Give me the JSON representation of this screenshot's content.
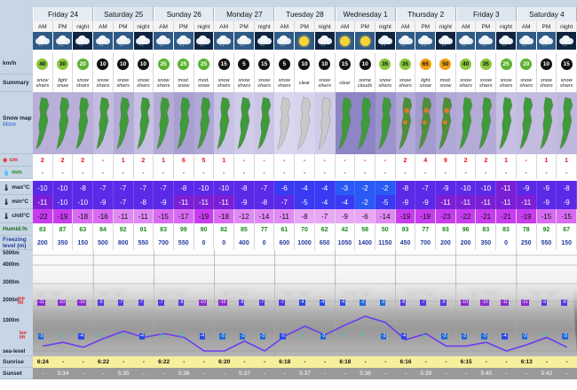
{
  "days": [
    {
      "name": "Friday 24",
      "periods": [
        "AM",
        "PM",
        "night"
      ]
    },
    {
      "name": "Saturday 25",
      "periods": [
        "AM",
        "PM",
        "night"
      ]
    },
    {
      "name": "Sunday 26",
      "periods": [
        "AM",
        "PM",
        "night"
      ]
    },
    {
      "name": "Monday 27",
      "periods": [
        "AM",
        "PM",
        "night"
      ]
    },
    {
      "name": "Tuesday 28",
      "periods": [
        "AM",
        "PM",
        "night"
      ]
    },
    {
      "name": "Wednesday 1",
      "periods": [
        "AM",
        "PM",
        "night"
      ]
    },
    {
      "name": "Thursday 2",
      "periods": [
        "AM",
        "PM",
        "night"
      ]
    },
    {
      "name": "Friday 3",
      "periods": [
        "AM",
        "PM",
        "night"
      ]
    },
    {
      "name": "Saturday 4",
      "periods": [
        "AM",
        "PM",
        "night"
      ]
    }
  ],
  "labels": {
    "wind": "km/h",
    "summary": "Summary",
    "snow_map": "Snow map",
    "more": "More",
    "snow_cm": "cm",
    "rain_mm": "mm",
    "max": "max°C",
    "min": "min°C",
    "chill": "chill°C",
    "humid": "Humid.%",
    "freezing": "Freezing level (m)",
    "alt5000": "5000m",
    "alt4000": "4000m",
    "alt3000": "3000m",
    "alt2000": "2000m",
    "alt1000": "1000m",
    "sea": "sea-level",
    "top": "top lift",
    "bot": "bot lift",
    "sunrise": "Sunrise",
    "sunset": "Sunset"
  },
  "wind": [
    "40",
    "30",
    "20",
    "10",
    "10",
    "10",
    "25",
    "25",
    "25",
    "15",
    "5",
    "15",
    "5",
    "10",
    "10",
    "15",
    "10",
    "35",
    "35",
    "65",
    "50",
    "40",
    "35",
    "25",
    "20",
    "10",
    "15"
  ],
  "summary": [
    "snow shwrs",
    "light snow",
    "snow shwrs",
    "snow shwrs",
    "snow shwrs",
    "snow shwrs",
    "snow shwrs",
    "mod. snow",
    "mod. snow",
    "snow shwrs",
    "snow shwrs",
    "snow shwrs",
    "snow shwrs",
    "clear",
    "snow shwrs",
    "clear",
    "some clouds",
    "snow shwrs",
    "snow shwrs",
    "light snow",
    "mod. snow",
    "snow shwrs",
    "snow shwrs",
    "snow shwrs",
    "snow shwrs",
    "snow shwrs",
    "snow shwrs"
  ],
  "snow": [
    "2",
    "2",
    "2",
    "-",
    "1",
    "2",
    "1",
    "6",
    "5",
    "1",
    "-",
    "-",
    "-",
    "-",
    "-",
    "-",
    "-",
    "-",
    "2",
    "4",
    "9",
    "2",
    "2",
    "1",
    "-",
    "1",
    "1"
  ],
  "rain": [
    "-",
    "-",
    "-",
    "-",
    "-",
    "-",
    "-",
    "-",
    "-",
    "-",
    "-",
    "-",
    "-",
    "-",
    "-",
    "-",
    "-",
    "-",
    "-",
    "-",
    "-",
    "-",
    "-",
    "-",
    "-",
    "-",
    "-"
  ],
  "max": [
    "-10",
    "-10",
    "-8",
    "-7",
    "-7",
    "-7",
    "-7",
    "-8",
    "-10",
    "-10",
    "-8",
    "-7",
    "-6",
    "-4",
    "-4",
    "-3",
    "-2",
    "-2",
    "-8",
    "-7",
    "-9",
    "-10",
    "-10",
    "-11",
    "-9",
    "-9",
    "-8"
  ],
  "min": [
    "-11",
    "-10",
    "-10",
    "-9",
    "-7",
    "-8",
    "-9",
    "-11",
    "-11",
    "-11",
    "-9",
    "-8",
    "-7",
    "-5",
    "-4",
    "-4",
    "-2",
    "-5",
    "-9",
    "-9",
    "-11",
    "-11",
    "-11",
    "-11",
    "-11",
    "-9",
    "-9"
  ],
  "chill": [
    "-22",
    "-19",
    "-18",
    "-16",
    "-11",
    "-11",
    "-15",
    "-17",
    "-19",
    "-18",
    "-12",
    "-14",
    "-11",
    "-8",
    "-7",
    "-9",
    "-6",
    "-14",
    "-19",
    "-19",
    "-23",
    "-22",
    "-21",
    "-21",
    "-19",
    "-15",
    "-15"
  ],
  "humid": [
    "83",
    "87",
    "63",
    "84",
    "92",
    "91",
    "83",
    "99",
    "90",
    "82",
    "85",
    "77",
    "61",
    "70",
    "62",
    "42",
    "58",
    "50",
    "93",
    "77",
    "93",
    "96",
    "83",
    "83",
    "78",
    "92",
    "67"
  ],
  "freezing": [
    "200",
    "350",
    "150",
    "500",
    "800",
    "550",
    "700",
    "550",
    "0",
    "0",
    "400",
    "0",
    "600",
    "1000",
    "650",
    "1050",
    "1400",
    "1150",
    "450",
    "700",
    "200",
    "200",
    "350",
    "0",
    "250",
    "550",
    "150"
  ],
  "toplift": [
    "-11",
    "-10",
    "-10",
    "-9",
    "-7",
    "-7",
    "-7",
    "-8",
    "-10",
    "-10",
    "-8",
    "-7",
    "-7",
    "-4",
    "-4",
    "-4",
    "-2",
    "-2",
    "-8",
    "-7",
    "-9",
    "-10",
    "-10",
    "-11",
    "-11",
    "-9",
    "-8"
  ],
  "botlift": [
    "-3",
    "2",
    "-4",
    "0",
    "2",
    "-4",
    "2",
    "0",
    "-4",
    "-3",
    "-3",
    "-3",
    "-5",
    "1",
    "-3",
    "3",
    "6",
    "-3",
    "-4",
    "1",
    "-3",
    "-2",
    "-3",
    "-4",
    "-3",
    "0",
    "-3"
  ],
  "sunrise": [
    "6:24",
    "-",
    "-",
    "6:22",
    "-",
    "-",
    "6:22",
    "-",
    "-",
    "6:20",
    "-",
    "-",
    "6:18",
    "-",
    "-",
    "6:18",
    "-",
    "-",
    "6:16",
    "-",
    "-",
    "6:15",
    "-",
    "-",
    "6:13",
    "-",
    "-"
  ],
  "sunset": [
    "-",
    "5:34",
    "-",
    "-",
    "5:35",
    "-",
    "-",
    "5:36",
    "-",
    "-",
    "5:37",
    "-",
    "-",
    "5:37",
    "-",
    "-",
    "5:38",
    "-",
    "-",
    "5:39",
    "-",
    "-",
    "5:40",
    "-",
    "-",
    "5:42",
    "-"
  ],
  "colors": {
    "header": "#c7d5e5",
    "snow": "#e8141c",
    "rain": "#2a9a2a",
    "max_bg": "#7a2cf0",
    "min_bg": "#5c1ce8",
    "chill_bg": "#e38cf5",
    "humid": "#1a8a1a",
    "freezing": "#223a9a",
    "sun_yellow": "#f6ef9c",
    "sunset_gray": "#9a9a9a"
  }
}
